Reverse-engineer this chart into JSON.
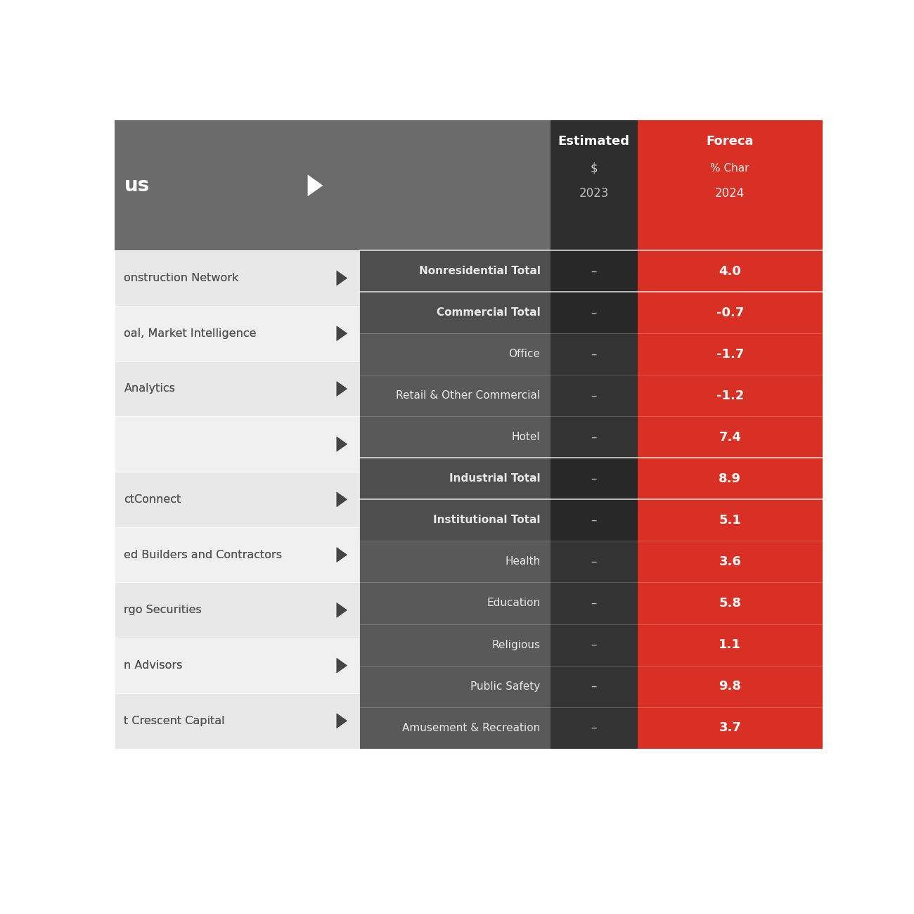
{
  "left_panel": {
    "header_text": "us",
    "header_bg": "#6b6b6b",
    "rows": [
      {
        "text": "onstruction Network",
        "bg": "#e8e8e8",
        "has_arrow": true
      },
      {
        "text": "oal, Market Intelligence",
        "bg": "#f0f0f0",
        "has_arrow": true
      },
      {
        "text": "Analytics",
        "bg": "#e8e8e8",
        "has_arrow": true
      },
      {
        "text": "",
        "bg": "#f0f0f0",
        "has_arrow": true
      },
      {
        "text": "ctConnect",
        "bg": "#e8e8e8",
        "has_arrow": true
      },
      {
        "text": "ed Builders and Contractors",
        "bg": "#f0f0f0",
        "has_arrow": true
      },
      {
        "text": "rgo Securities",
        "bg": "#e8e8e8",
        "has_arrow": true
      },
      {
        "text": "n Advisors",
        "bg": "#f0f0f0",
        "has_arrow": true
      },
      {
        "text": "t Crescent Capital",
        "bg": "#e8e8e8",
        "has_arrow": true
      }
    ]
  },
  "right_panel": {
    "col1_header": "Estimated",
    "col1_subheader": "$",
    "col1_year": "2023",
    "col1_bg": "#2d2d2d",
    "col2_header": "Foreca",
    "col2_subheader": "% Char",
    "col2_year": "2024",
    "col2_bg": "#d93025",
    "label_col_bg": "#555555",
    "rows": [
      {
        "label": "Nonresidential Total",
        "val2023": "–",
        "val2024": "4.0",
        "bold": true
      },
      {
        "label": "Commercial Total",
        "val2023": "–",
        "val2024": "-0.7",
        "bold": true
      },
      {
        "label": "Office",
        "val2023": "–",
        "val2024": "-1.7",
        "bold": false
      },
      {
        "label": "Retail & Other Commercial",
        "val2023": "–",
        "val2024": "-1.2",
        "bold": false
      },
      {
        "label": "Hotel",
        "val2023": "–",
        "val2024": "7.4",
        "bold": false
      },
      {
        "label": "Industrial Total",
        "val2023": "–",
        "val2024": "8.9",
        "bold": true
      },
      {
        "label": "Institutional Total",
        "val2023": "–",
        "val2024": "5.1",
        "bold": true
      },
      {
        "label": "Health",
        "val2023": "–",
        "val2024": "3.6",
        "bold": false
      },
      {
        "label": "Education",
        "val2023": "–",
        "val2024": "5.8",
        "bold": false
      },
      {
        "label": "Religious",
        "val2023": "–",
        "val2024": "1.1",
        "bold": false
      },
      {
        "label": "Public Safety",
        "val2023": "–",
        "val2024": "9.8",
        "bold": false
      },
      {
        "label": "Amusement & Recreation",
        "val2023": "–",
        "val2024": "3.7",
        "bold": false
      }
    ]
  },
  "bg_color": "#ffffff",
  "text_color_dark": "#555555"
}
